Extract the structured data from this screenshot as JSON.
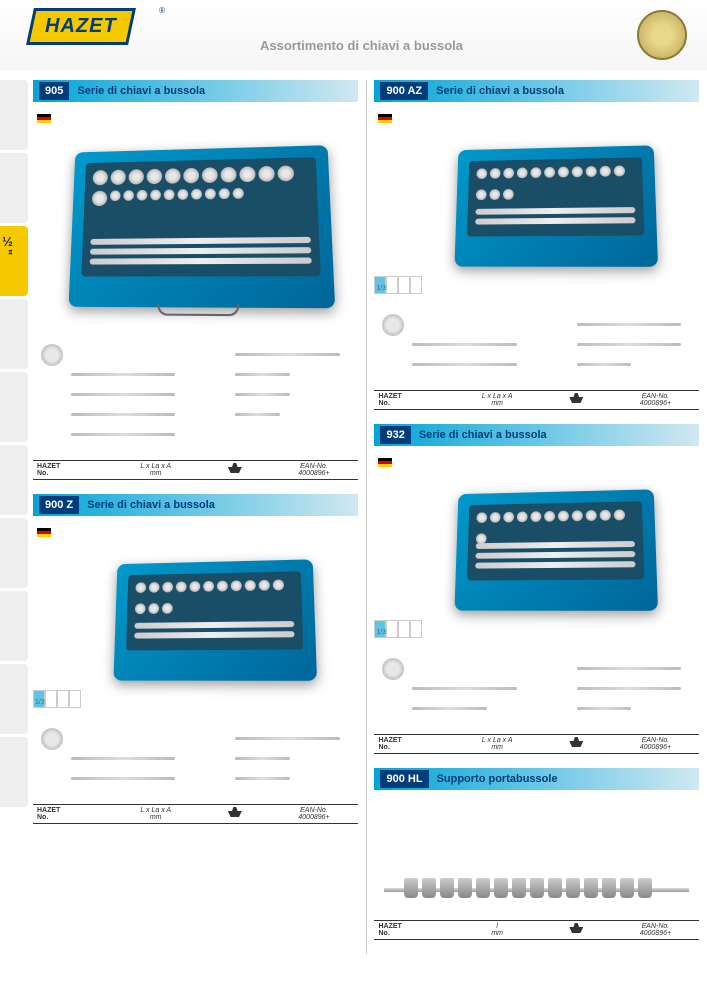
{
  "header": {
    "logo_text": "HAZET",
    "page_title": "Assortimento di chiavi a bussola",
    "drive_size": "½\""
  },
  "table_headers": {
    "hazet": "HAZET",
    "no": "No.",
    "dims": "L x La x A",
    "unit_mm": "mm",
    "single_l": "l",
    "ean": "EAN-No.",
    "ean_prefix": "4000896+"
  },
  "sections": [
    {
      "code": "905",
      "title": "Serie di chiavi a bussola",
      "flag": "de",
      "case_size": "lg",
      "has_components": true,
      "fraction": ""
    },
    {
      "code": "900 Z",
      "title": "Serie di chiavi a bussola",
      "flag": "de",
      "case_size": "sm",
      "has_components": true,
      "fraction": "1/3"
    },
    {
      "code": "900 AZ",
      "title": "Serie di chiavi a bussola",
      "flag": "de",
      "case_size": "sm",
      "has_components": true,
      "fraction": "1/3"
    },
    {
      "code": "932",
      "title": "Serie di chiavi a bussola",
      "flag": "de",
      "case_size": "sm",
      "has_components": true,
      "fraction": "1/3"
    },
    {
      "code": "900 HL",
      "title": "Supporto portabussole",
      "flag": "",
      "case_size": "rail",
      "has_components": false,
      "fraction": ""
    }
  ],
  "colors": {
    "brand_blue": "#003d7a",
    "brand_yellow": "#f5c800",
    "header_cyan": "#00a5d8",
    "case_teal": "#0099cc"
  }
}
